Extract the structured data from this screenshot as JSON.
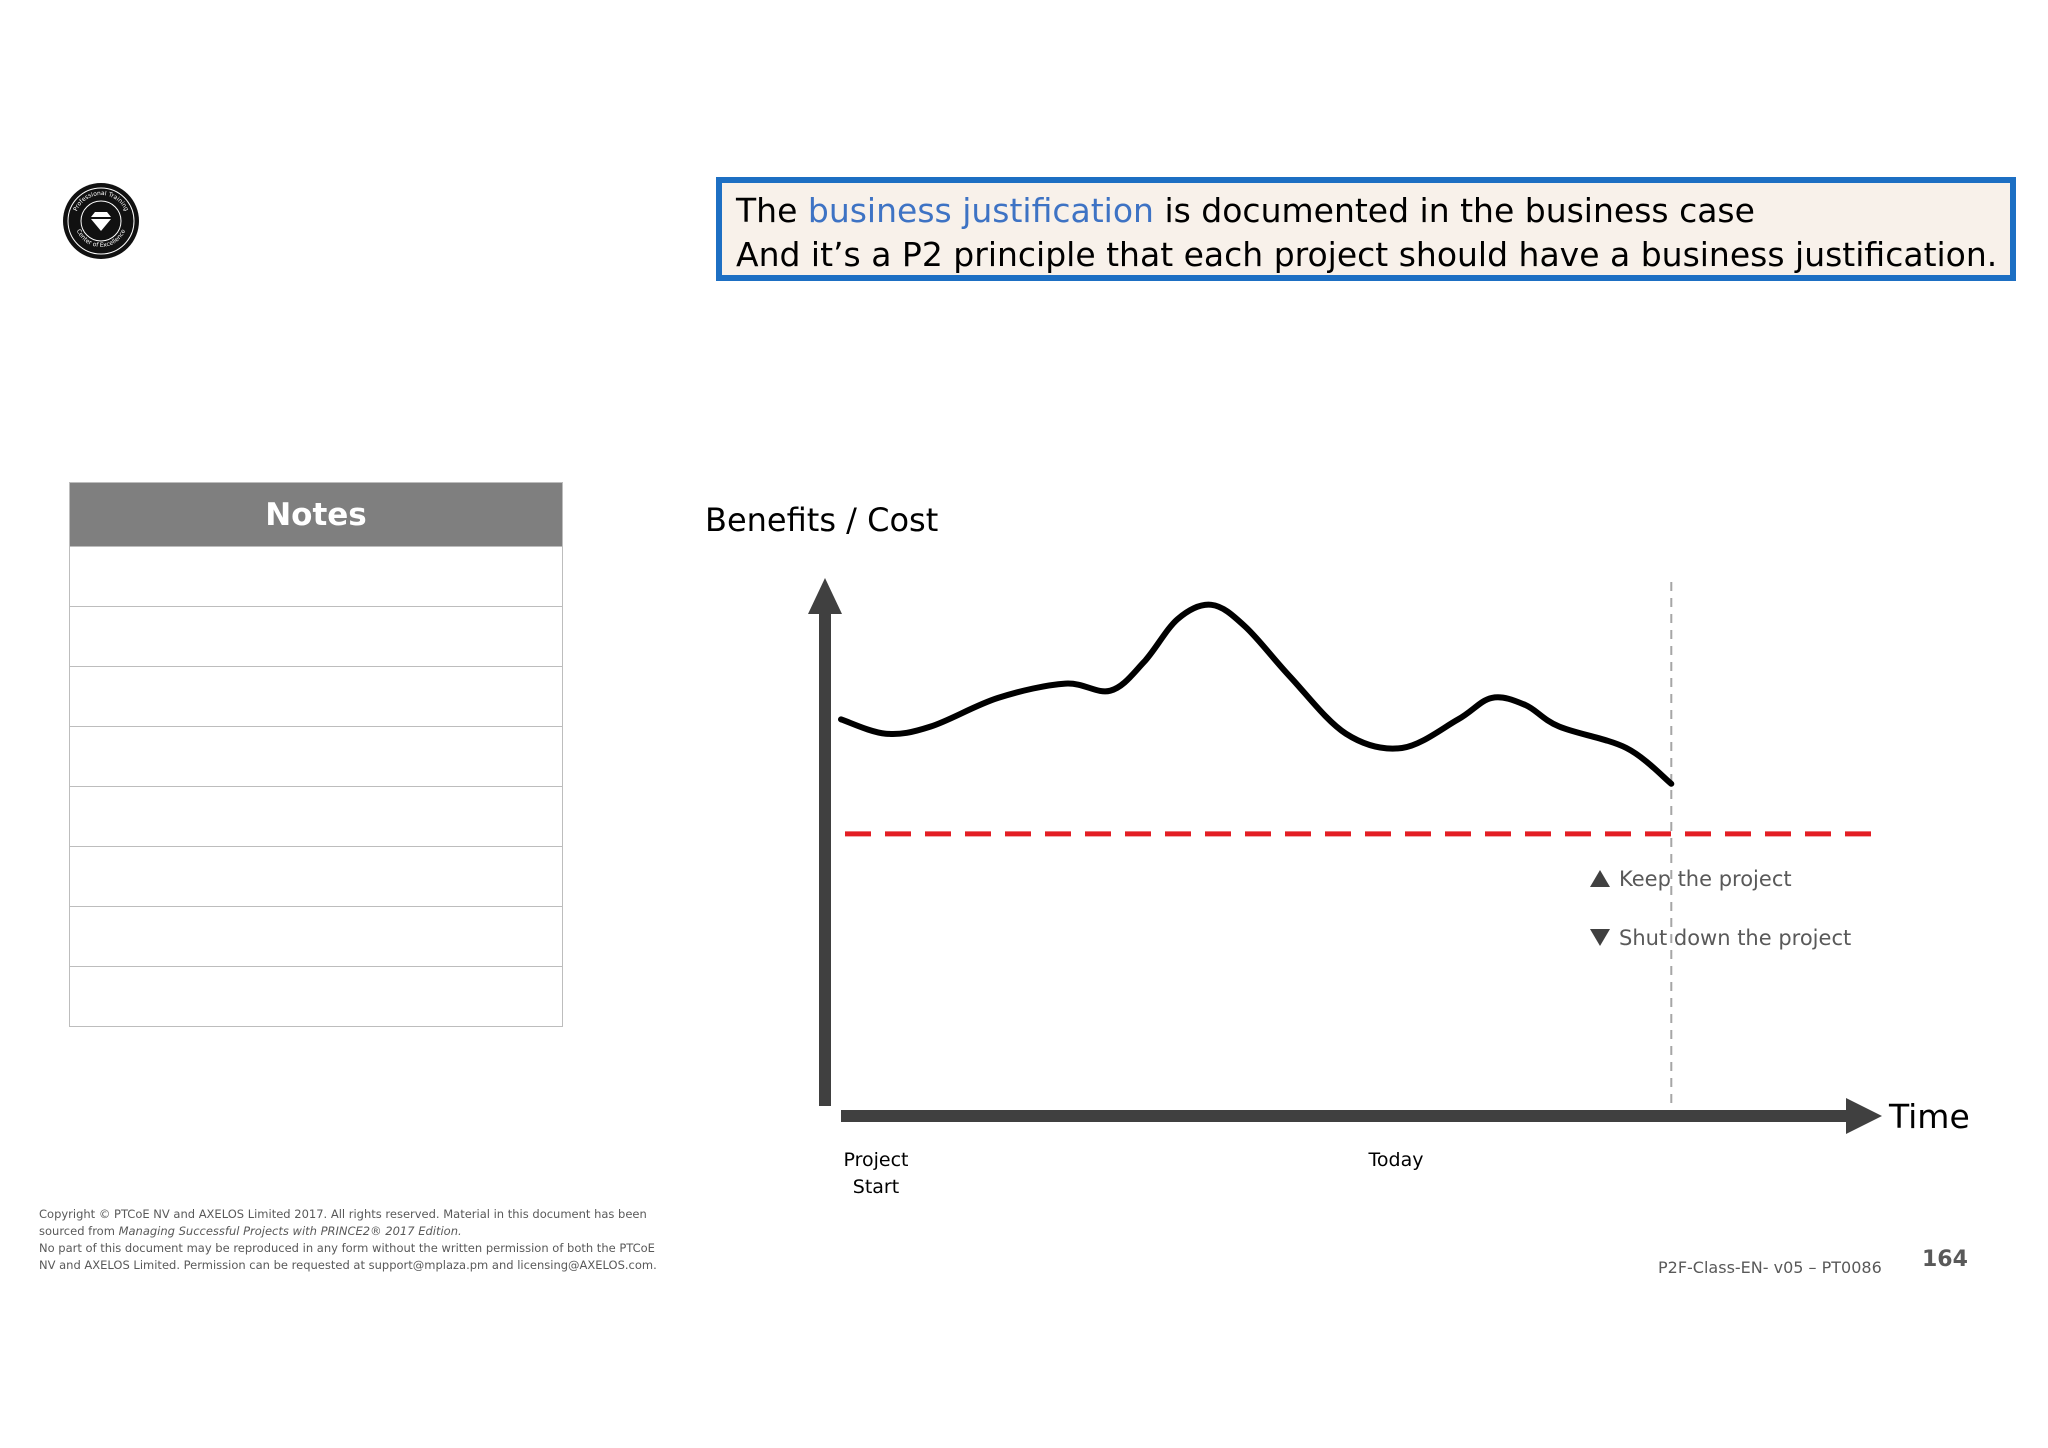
{
  "callout": {
    "line1_pre": "The ",
    "line1_highlight": "business justification",
    "line1_post": " is documented in the business case",
    "line2": "And it’s a P2 principle that each project should have a business justification.",
    "highlight_color": "#3e73c4",
    "border_color": "#1d6fc3"
  },
  "logo": {
    "icon": "diamond-seal-icon",
    "text_top": "Professional Training",
    "text_bottom": "Center of Excellence"
  },
  "notes": {
    "title": "Notes",
    "rows": [
      "",
      "",
      "",
      "",
      "",
      "",
      "",
      ""
    ]
  },
  "chart_data": {
    "type": "line",
    "title": "",
    "ylabel": "Benefits / Cost",
    "xlabel": "Time",
    "x_tick_labels": [
      {
        "line1": "Project",
        "line2": "Start"
      },
      {
        "line1": "Today",
        "line2": ""
      }
    ],
    "xlim": [
      0,
      100
    ],
    "ylim": [
      0,
      100
    ],
    "series": [
      {
        "name": "Benefits / Cost",
        "color": "#000000",
        "x": [
          0,
          4,
          8,
          14,
          20,
          24,
          27,
          30,
          33,
          36,
          40,
          45,
          50,
          55,
          58,
          61,
          64,
          70,
          74
        ],
        "y": [
          54,
          52,
          53,
          57,
          59,
          58,
          62,
          68,
          70,
          67,
          60,
          52,
          50,
          54,
          57,
          56,
          53,
          50,
          45
        ]
      }
    ],
    "threshold": {
      "value": 38,
      "color": "#e31e24",
      "style": "dashed",
      "label_above": "Keep the project",
      "label_below": "Shut down the project",
      "icon_above": "triangle-up-icon",
      "icon_below": "triangle-down-icon"
    },
    "today_marker": {
      "x": 74,
      "style": "dashed",
      "color": "#a6a6a6"
    }
  },
  "footer": {
    "copyright_line1": "Copyright © PTCoE NV and AXELOS Limited 2017. All rights reserved. Material in this document has been",
    "copyright_line2_pre": "sourced from ",
    "copyright_line2_italic": "Managing Successful Projects with PRINCE2® 2017 Edition.",
    "copyright_line3": "No part of this document may be reproduced in any form without the written permission of both the PTCoE",
    "copyright_line4": "NV and AXELOS Limited. Permission can be requested at support@mplaza.pm and licensing@AXELOS.com.",
    "doc_code": "P2F-Class-EN- v05 – PT0086",
    "page_number": "164"
  }
}
